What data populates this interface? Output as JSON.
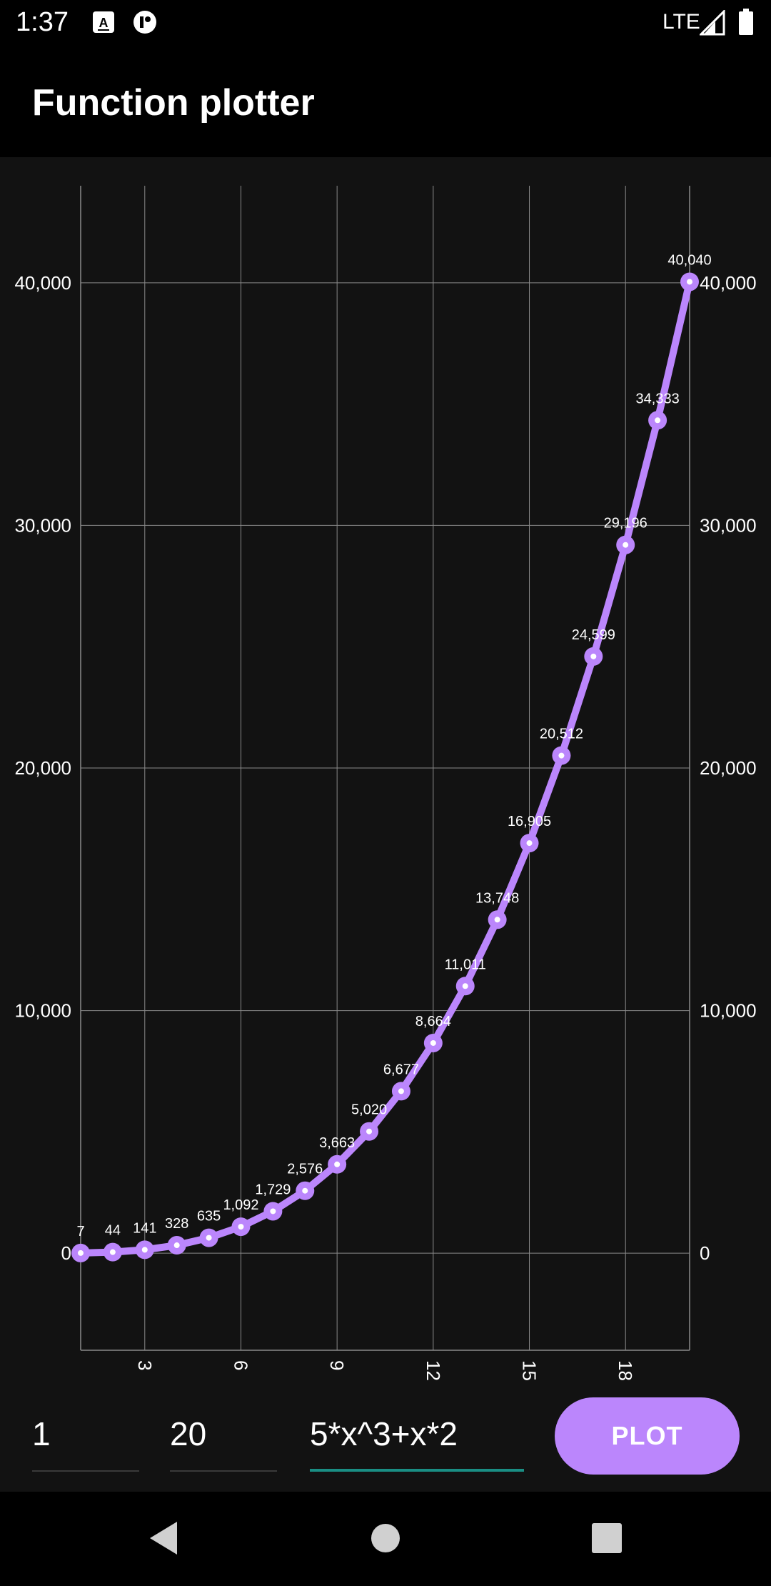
{
  "status_bar": {
    "time": "1:37",
    "network": "LTE",
    "icons": [
      "keyboard-a-icon",
      "app-notification-icon",
      "signal-icon",
      "battery-icon"
    ]
  },
  "app_bar": {
    "title": "Function plotter"
  },
  "inputs": {
    "from_value": "1",
    "to_value": "20",
    "function_value": "5*x^3+x*2"
  },
  "plot_button": {
    "label": "PLOT"
  },
  "colors": {
    "accent": "#bb86fc",
    "background": "#121212",
    "grid": "#8a8a8a",
    "focus_underline": "#1a8e84"
  },
  "nav_bar": {
    "icons": [
      "back-icon",
      "home-icon",
      "recents-icon"
    ]
  },
  "chart_data": {
    "type": "line",
    "x": [
      1,
      2,
      3,
      4,
      5,
      6,
      7,
      8,
      9,
      10,
      11,
      12,
      13,
      14,
      15,
      16,
      17,
      18,
      19,
      20
    ],
    "series": [
      {
        "values": [
          7,
          44,
          141,
          328,
          635,
          1092,
          1729,
          2576,
          3663,
          5020,
          6677,
          8664,
          11011,
          13748,
          16905,
          20512,
          24599,
          29196,
          34333,
          40040
        ]
      }
    ],
    "data_labels": [
      "7",
      "44",
      "141",
      "328",
      "635",
      "1,092",
      "1,729",
      "2,576",
      "3,663",
      "5,020",
      "6,677",
      "8,664",
      "11,011",
      "13,748",
      "16,905",
      "20,512",
      "24,599",
      "29,196",
      "34,333",
      "40,040"
    ],
    "x_ticks": [
      3,
      6,
      9,
      12,
      15,
      18
    ],
    "x_tick_labels": [
      "3",
      "6",
      "9",
      "12",
      "15",
      "18"
    ],
    "y_ticks": [
      0,
      10000,
      20000,
      30000,
      40000
    ],
    "y_tick_labels_left": [
      "0",
      "10,000",
      "20,000",
      "30,000",
      "40,000"
    ],
    "y_tick_labels_right": [
      "0",
      "10,000",
      "20,000",
      "30,000",
      "40,000"
    ],
    "xlim": [
      1,
      20
    ],
    "ylim": [
      -4000,
      44000
    ],
    "grid": true,
    "legend": "none",
    "title": "",
    "xlabel": "",
    "ylabel": ""
  }
}
